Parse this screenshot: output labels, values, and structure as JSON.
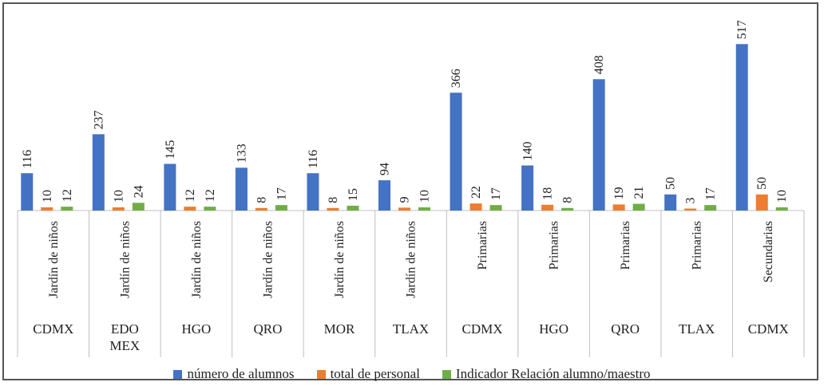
{
  "chart_data": {
    "type": "bar",
    "groups": [
      {
        "level": "Jardín de niños",
        "state": "CDMX"
      },
      {
        "level": "Jardín de niños",
        "state": "EDO\nMEX"
      },
      {
        "level": "Jardín de niños",
        "state": "HGO"
      },
      {
        "level": "Jardín de niños",
        "state": "QRO"
      },
      {
        "level": "Jardín de niños",
        "state": "MOR"
      },
      {
        "level": "Jardín de niños",
        "state": "TLAX"
      },
      {
        "level": "Primarias",
        "state": "CDMX"
      },
      {
        "level": "Primarias",
        "state": "HGO"
      },
      {
        "level": "Primarias",
        "state": "QRO"
      },
      {
        "level": "Primarias",
        "state": "TLAX"
      },
      {
        "level": "Secundarias",
        "state": "CDMX"
      }
    ],
    "series": [
      {
        "name": "número de alumnos",
        "color": "#4472C4",
        "values": [
          116,
          237,
          145,
          133,
          116,
          94,
          366,
          140,
          408,
          50,
          517
        ]
      },
      {
        "name": "total de personal",
        "color": "#ED7D31",
        "values": [
          10,
          10,
          12,
          8,
          8,
          9,
          22,
          18,
          19,
          3,
          50
        ]
      },
      {
        "name": "Indicador Relación alumno/maestro",
        "color": "#70AD47",
        "values": [
          12,
          24,
          12,
          17,
          15,
          10,
          17,
          8,
          21,
          17,
          10
        ]
      }
    ],
    "title": "",
    "xlabel": "",
    "ylabel": "",
    "ylim": [
      0,
      540
    ],
    "grid": false,
    "legend": "bottom"
  }
}
